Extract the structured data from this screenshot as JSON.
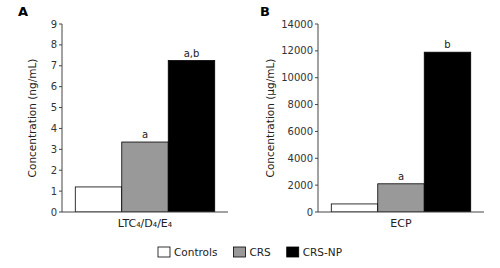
{
  "chart_data": [
    {
      "type": "bar",
      "title": "A",
      "y_label": "Concentration (ng/mL)",
      "categories": [
        "LTC₄/D₄/E₄"
      ],
      "series": [
        {
          "name": "Controls",
          "color": "#ffffff",
          "values": [
            1.2
          ]
        },
        {
          "name": "CRS",
          "color": "#999999",
          "values": [
            3.35
          ],
          "annotations": [
            "a"
          ]
        },
        {
          "name": "CRS-NP",
          "color": "#000000",
          "values": [
            7.25
          ],
          "annotations": [
            "a,b"
          ]
        }
      ],
      "ylim": [
        0,
        9
      ],
      "yticks": [
        0,
        1,
        2,
        3,
        4,
        5,
        6,
        7,
        8,
        9
      ],
      "grid": false,
      "legend": "bottom"
    },
    {
      "type": "bar",
      "title": "B",
      "y_label": "Concentration (μg/mL)",
      "categories": [
        "ECP"
      ],
      "series": [
        {
          "color": "#ffffff",
          "values": [
            600
          ]
        },
        {
          "color": "#999999",
          "values": [
            2100
          ],
          "annotations": [
            "a"
          ]
        },
        {
          "color": "#000000",
          "values": [
            11900
          ],
          "annotations": [
            "b"
          ]
        }
      ],
      "ylim": [
        0,
        14000
      ],
      "yticks": [
        0,
        2000,
        4000,
        6000,
        8000,
        10000,
        12000,
        14000
      ],
      "grid": false
    }
  ]
}
